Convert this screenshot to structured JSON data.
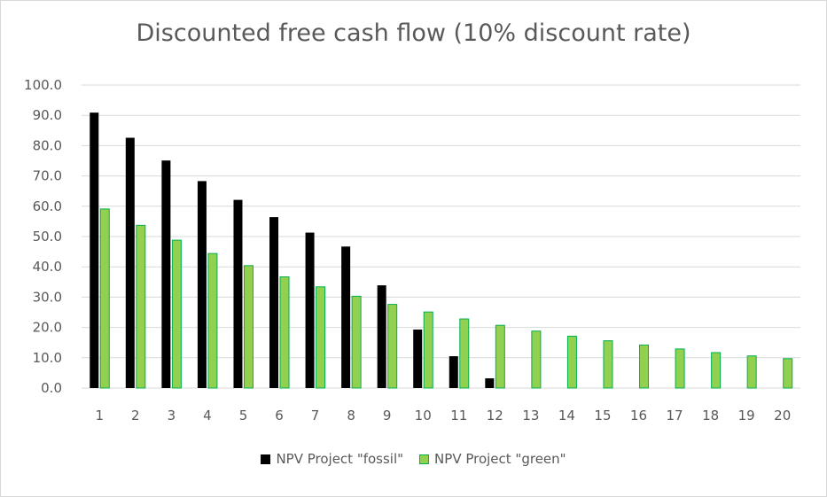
{
  "chart_data": {
    "type": "bar",
    "title": "Discounted free cash flow (10% discount rate)",
    "xlabel": "",
    "ylabel": "",
    "ylim": [
      0,
      100
    ],
    "yticks": [
      "0.0",
      "10.0",
      "20.0",
      "30.0",
      "40.0",
      "50.0",
      "60.0",
      "70.0",
      "80.0",
      "90.0",
      "100.0"
    ],
    "categories": [
      "1",
      "2",
      "3",
      "4",
      "5",
      "6",
      "7",
      "8",
      "9",
      "10",
      "11",
      "12",
      "13",
      "14",
      "15",
      "16",
      "17",
      "18",
      "19",
      "20"
    ],
    "grid": true,
    "legend_position": "bottom",
    "series": [
      {
        "name": "NPV Project \"fossil\"",
        "color": "#000000",
        "values": [
          90.9,
          82.6,
          75.1,
          68.3,
          62.1,
          56.4,
          51.3,
          46.7,
          33.9,
          19.3,
          10.5,
          3.2,
          0,
          0,
          0,
          0,
          0,
          0,
          0,
          0
        ]
      },
      {
        "name": "NPV Project \"green\"",
        "color": "#92d050",
        "stroke": "#00b050",
        "values": [
          59.1,
          53.7,
          48.8,
          44.4,
          40.4,
          36.7,
          33.4,
          30.3,
          27.6,
          25.1,
          22.8,
          20.7,
          18.8,
          17.1,
          15.6,
          14.2,
          12.9,
          11.7,
          10.6,
          9.7
        ]
      }
    ]
  }
}
